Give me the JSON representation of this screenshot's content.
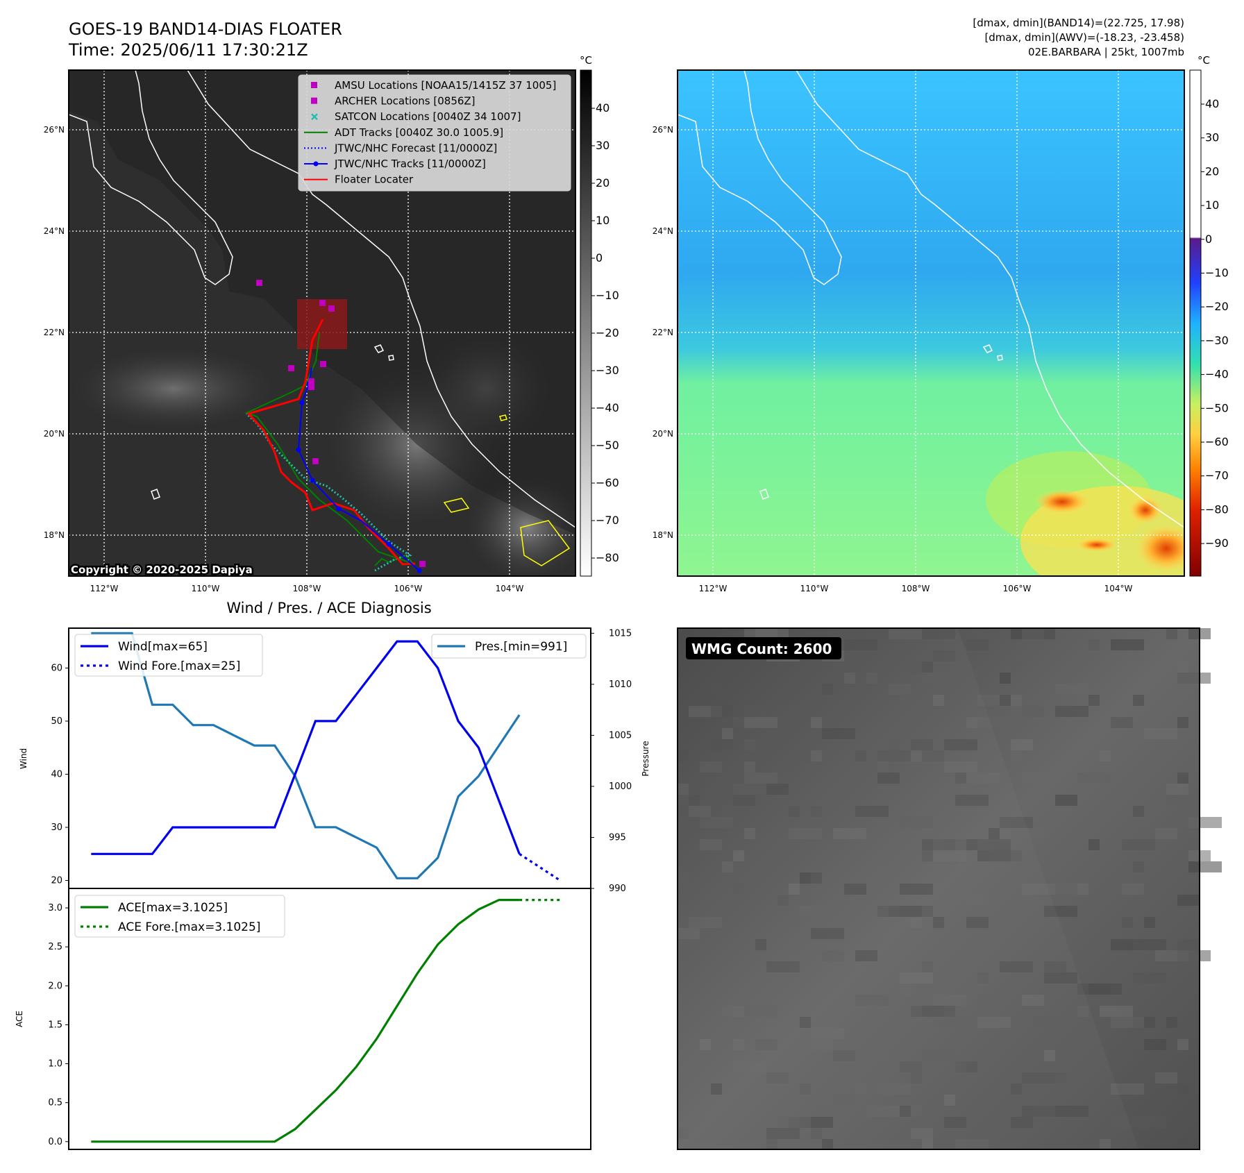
{
  "header": {
    "title_line1": "GOES-19 BAND14-DIAS FLOATER",
    "title_line2": "Time: 2025/06/11 17:30:21Z",
    "info_line1": "[dmax, dmin](BAND14)=(22.725, 17.98)",
    "info_line2": "[dmax, dmin](AWV)=(-18.23, -23.458)",
    "info_line3": "02E.BARBARA | 25kt, 1007mb"
  },
  "maps": {
    "lat_labels": [
      "26°N",
      "24°N",
      "22°N",
      "20°N",
      "18°N"
    ],
    "lon_labels": [
      "112°W",
      "110°W",
      "108°W",
      "106°W",
      "104°W"
    ],
    "copyright": "Copyright © 2020-2025 Dapiya",
    "unit": "°C",
    "colorbar1_ticks": [
      "40",
      "30",
      "20",
      "10",
      "0",
      "−10",
      "−20",
      "−30",
      "−40",
      "−50",
      "−60",
      "−70",
      "−80"
    ],
    "colorbar2_ticks": [
      "40",
      "30",
      "20",
      "10",
      "0",
      "−10",
      "−20",
      "−30",
      "−40",
      "−50",
      "−60",
      "−70",
      "−80",
      "−90"
    ],
    "legend": [
      {
        "label": "AMSU Locations [NOAA15/1415Z 37 1005]",
        "color": "#c000c0",
        "symbol": "square"
      },
      {
        "label": "ARCHER Locations [0856Z]",
        "color": "#c000c0",
        "symbol": "square"
      },
      {
        "label": "SATCON Locations [0040Z 34 1007]",
        "color": "#20c0b0",
        "symbol": "x"
      },
      {
        "label": "ADT Tracks [0040Z 30.0 1005.9]",
        "color": "#008000",
        "symbol": "line"
      },
      {
        "label": "JTWC/NHC Forecast [11/0000Z]",
        "color": "#0000ff",
        "symbol": "dotted"
      },
      {
        "label": "JTWC/NHC Tracks [11/0000Z]",
        "color": "#0000ff",
        "symbol": "line-dot"
      },
      {
        "label": "Floater Locater",
        "color": "#ff0000",
        "symbol": "line"
      }
    ]
  },
  "wmg": {
    "label": "WMG Count: 2600"
  },
  "colors": {
    "wind": "#0000ee",
    "pressure": "#1f77b4",
    "ace": "#008000",
    "floater": "#ff0000"
  },
  "chart_data": [
    {
      "type": "line",
      "title": "Wind / Pres. / ACE Diagnosis",
      "ylabel": "Wind",
      "ylim": [
        18.5,
        67.5
      ],
      "yticks": [
        20,
        30,
        40,
        50,
        60
      ],
      "series": [
        {
          "name": "Wind[max=65]",
          "x": [
            0,
            1,
            2,
            3,
            4,
            5,
            6,
            7,
            8,
            9,
            10,
            11,
            12,
            13,
            14,
            15,
            16,
            17,
            18,
            19,
            20,
            21
          ],
          "values": [
            25,
            25,
            25,
            25,
            30,
            30,
            30,
            30,
            30,
            30,
            40,
            50,
            50,
            55,
            60,
            65,
            65,
            60,
            50,
            45,
            35,
            25
          ]
        },
        {
          "name": "Wind Fore.[max=25]",
          "x": [
            21,
            22,
            23
          ],
          "values": [
            25,
            22.5,
            20
          ]
        }
      ]
    },
    {
      "type": "line",
      "ylabel": "Pressure",
      "ylim": [
        990,
        1015.5
      ],
      "yticks": [
        990,
        995,
        1000,
        1005,
        1010,
        1015
      ],
      "series": [
        {
          "name": "Pres.[min=991]",
          "x": [
            0,
            1,
            2,
            3,
            4,
            5,
            6,
            7,
            8,
            9,
            10,
            11,
            12,
            13,
            14,
            15,
            16,
            17,
            18,
            19,
            20,
            21
          ],
          "values": [
            1015,
            1015,
            1015,
            1008,
            1008,
            1006,
            1006,
            1005,
            1004,
            1004,
            1001,
            996,
            996,
            995,
            994,
            991,
            991,
            993,
            999,
            1001,
            1004,
            1007
          ]
        }
      ]
    },
    {
      "type": "line",
      "ylabel": "ACE",
      "ylim": [
        -0.1,
        3.25
      ],
      "yticks": [
        0.0,
        0.5,
        1.0,
        1.5,
        2.0,
        2.5,
        3.0
      ],
      "ytick_labels": [
        "0.0",
        "0.5",
        "1.0",
        "1.5",
        "2.0",
        "2.5",
        "3.0"
      ],
      "series": [
        {
          "name": "ACE[max=3.1025]",
          "x": [
            0,
            1,
            2,
            3,
            4,
            5,
            6,
            7,
            8,
            9,
            10,
            11,
            12,
            13,
            14,
            15,
            16,
            17,
            18,
            19,
            20,
            21
          ],
          "values": [
            0,
            0,
            0,
            0,
            0,
            0,
            0,
            0,
            0,
            0,
            0.16,
            0.41,
            0.66,
            0.96,
            1.32,
            1.74,
            2.16,
            2.53,
            2.79,
            2.98,
            3.1025,
            3.1025
          ]
        },
        {
          "name": "ACE Fore.[max=3.1025]",
          "x": [
            21,
            22,
            23
          ],
          "values": [
            3.1025,
            3.1025,
            3.1025
          ]
        }
      ]
    }
  ]
}
